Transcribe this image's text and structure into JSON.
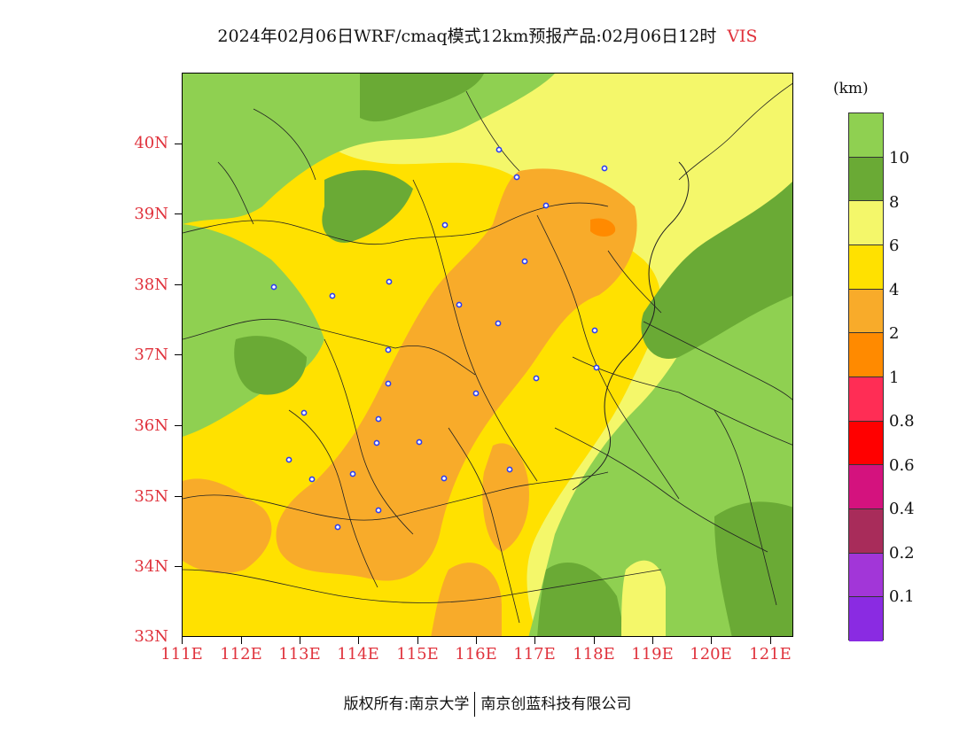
{
  "title": {
    "text": "2024年02月06日WRF/cmaq模式12km预报产品:02月06日12时",
    "variable": "VIS"
  },
  "axes": {
    "lat_labels": [
      "40N",
      "39N",
      "38N",
      "37N",
      "36N",
      "35N",
      "34N",
      "33N"
    ],
    "lon_labels": [
      "111E",
      "112E",
      "113E",
      "114E",
      "115E",
      "116E",
      "117E",
      "118E",
      "119E",
      "120E",
      "121E"
    ],
    "label_color": "#e0323c"
  },
  "legend": {
    "unit": "(km)",
    "labels": [
      "10",
      "8",
      "6",
      "4",
      "2",
      "1",
      "0.8",
      "0.6",
      "0.4",
      "0.2",
      "0.1"
    ],
    "colors": [
      "#8fd051",
      "#6aaa35",
      "#f4f76a",
      "#ffe100",
      "#f8ab2a",
      "#ff8a00",
      "#ff2d55",
      "#ff0000",
      "#d4127e",
      "#a82c5a",
      "#a236d8",
      "#8a2be2"
    ]
  },
  "map": {
    "fill_colors": {
      "green_light": "#8fd051",
      "green_dark": "#6aaa35",
      "yellow_light": "#f4f76a",
      "yellow": "#ffe100",
      "orange_light": "#f8ab2a",
      "orange": "#ff8a00"
    },
    "station_marker_color": "#2d3ef0"
  },
  "footer": {
    "copyright_left": "版权所有:南京大学",
    "copyright_right": "南京创蓝科技有限公司"
  }
}
